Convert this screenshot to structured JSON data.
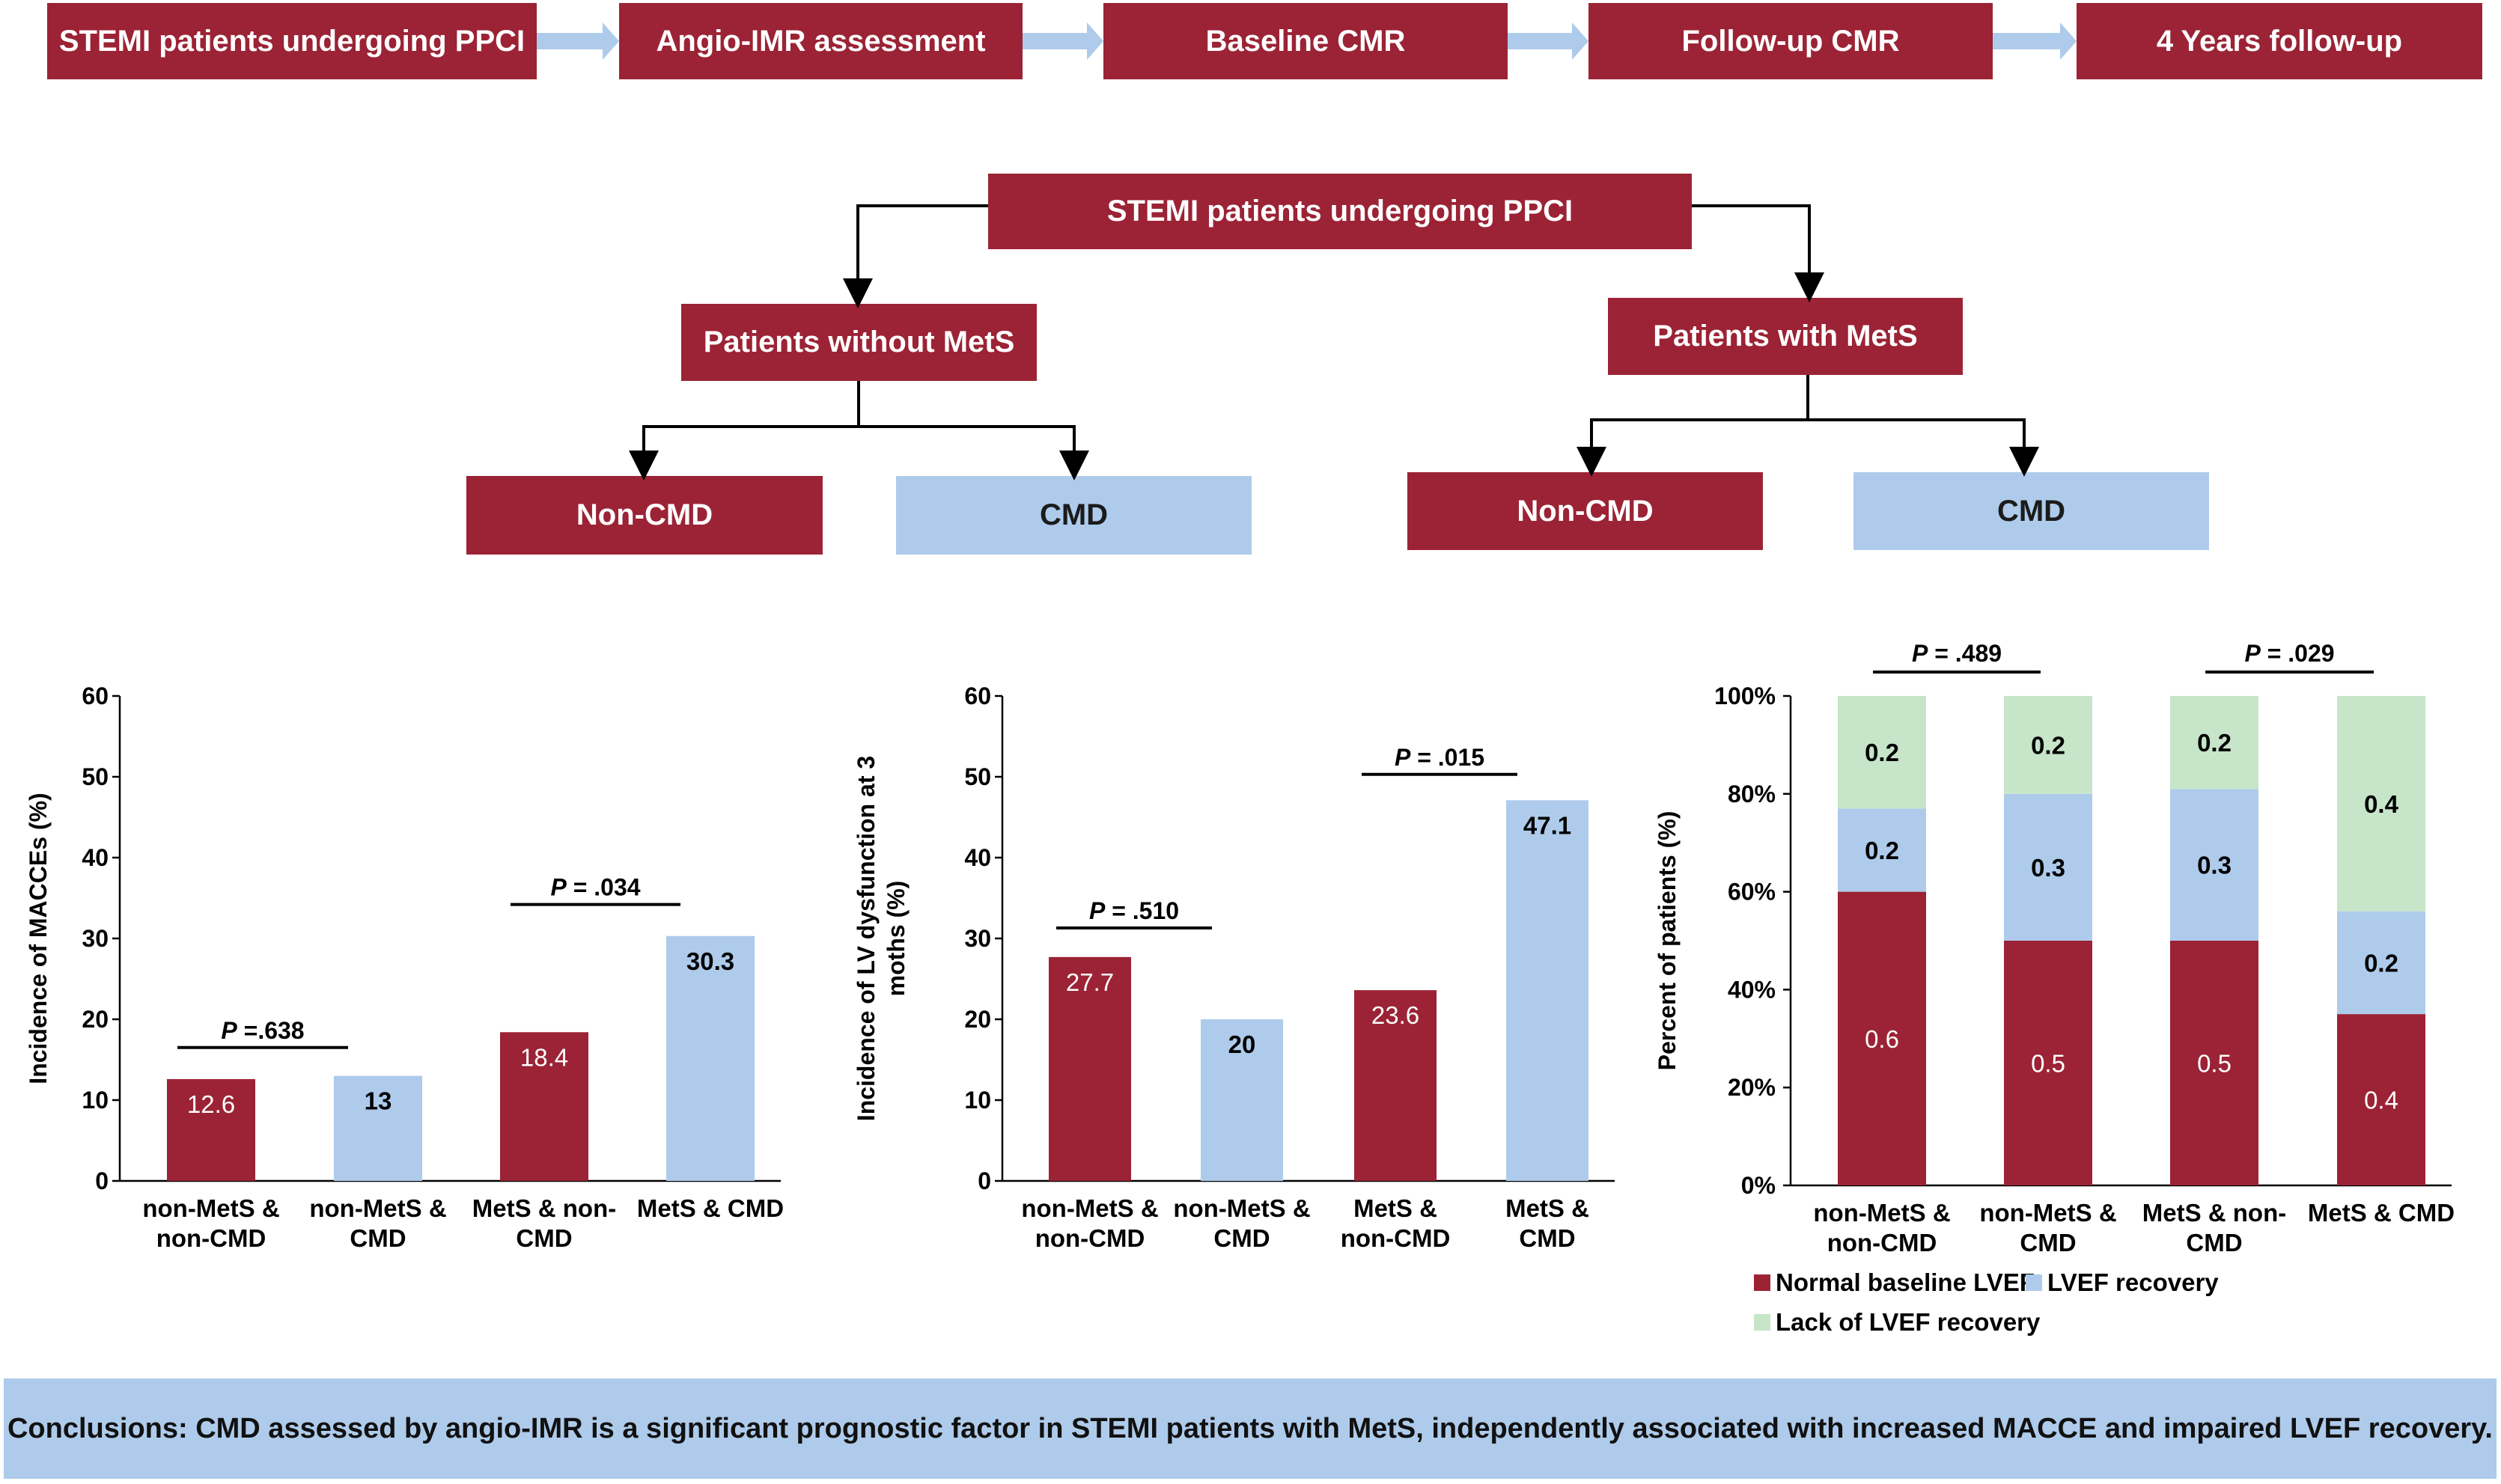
{
  "timeline": {
    "steps": [
      "STEMI patients undergoing PPCI",
      "Angio-IMR assessment",
      "Baseline CMR",
      "Follow-up CMR",
      "4 Years follow-up"
    ]
  },
  "tree": {
    "root": "STEMI patients undergoing PPCI",
    "left_group": "Patients without MetS",
    "right_group": "Patients with MetS",
    "left_noncmd": "Non-CMD",
    "left_cmd": "CMD",
    "right_noncmd": "Non-CMD",
    "right_cmd": "CMD"
  },
  "colors": {
    "red": "#9b2335",
    "blue": "#aecbeb",
    "green": "#c6e5c9"
  },
  "chart_data": [
    {
      "type": "bar",
      "ylabel": "Incidence of MACCEs (%)",
      "ylim": [
        0,
        60
      ],
      "yticks": [
        0,
        10,
        20,
        30,
        40,
        50,
        60
      ],
      "categories": [
        [
          "non-MetS &",
          "non-CMD"
        ],
        [
          "non-MetS &",
          "CMD"
        ],
        [
          "MetS & non-",
          "CMD"
        ],
        [
          "MetS & CMD"
        ]
      ],
      "values": [
        12.6,
        13,
        18.4,
        30.3
      ],
      "labels": [
        "12.6",
        "13",
        "18.4",
        "30.3"
      ],
      "bar_colors": [
        "red",
        "blue",
        "red",
        "blue"
      ],
      "pvalues": [
        {
          "text": "P =.638",
          "pair": [
            0,
            1
          ],
          "y": 16.5
        },
        {
          "text": "P = .034",
          "pair": [
            2,
            3
          ],
          "y": 34.2
        }
      ]
    },
    {
      "type": "bar",
      "ylabel": "Incidence of LV dysfunction at 3 moths (%)",
      "ylabel_lines": [
        "Incidence of LV dysfunction at 3",
        "moths (%)"
      ],
      "ylim": [
        0,
        60
      ],
      "yticks": [
        0,
        10,
        20,
        30,
        40,
        50,
        60
      ],
      "categories": [
        [
          "non-MetS &",
          "non-CMD"
        ],
        [
          "non-MetS &",
          "CMD"
        ],
        [
          "MetS &",
          "non-CMD"
        ],
        [
          "MetS &",
          "CMD"
        ]
      ],
      "values": [
        27.7,
        20,
        23.6,
        47.1
      ],
      "labels": [
        "27.7",
        "20",
        "23.6",
        "47.1"
      ],
      "bar_colors": [
        "red",
        "blue",
        "red",
        "blue"
      ],
      "pvalues": [
        {
          "text": "P = .510",
          "pair": [
            0,
            1
          ],
          "y": 31.3
        },
        {
          "text": "P = .015",
          "pair": [
            2,
            3
          ],
          "y": 50.3
        }
      ]
    },
    {
      "type": "stacked_bar",
      "ylabel": "Percent of patients (%)",
      "ylim": [
        0,
        100
      ],
      "yticks": [
        "0%",
        "20%",
        "40%",
        "60%",
        "80%",
        "100%"
      ],
      "categories": [
        [
          "non-MetS &",
          "non-CMD"
        ],
        [
          "non-MetS &",
          "CMD"
        ],
        [
          "MetS & non-",
          "CMD"
        ],
        [
          "MetS & CMD"
        ]
      ],
      "series": [
        {
          "name": "Normal baseline LVEF",
          "color": "red",
          "values": [
            0.6,
            0.5,
            0.5,
            0.35
          ],
          "labels": [
            "0.6",
            "0.5",
            "0.5",
            "0.4"
          ]
        },
        {
          "name": "LVEF recovery",
          "color": "blue",
          "values": [
            0.17,
            0.3,
            0.31,
            0.21
          ],
          "labels": [
            "0.2",
            "0.3",
            "0.3",
            "0.2"
          ]
        },
        {
          "name": "Lack of LVEF recovery",
          "color": "green",
          "values": [
            0.23,
            0.2,
            0.19,
            0.44
          ],
          "labels": [
            "0.2",
            "0.2",
            "0.2",
            "0.4"
          ]
        }
      ],
      "pvalues": [
        {
          "text": "P = .489",
          "pair": [
            0,
            1
          ]
        },
        {
          "text": "P = .029",
          "pair": [
            2,
            3
          ]
        }
      ]
    }
  ],
  "conclusion": "Conclusions: CMD assessed by angio-IMR is a significant prognostic factor in STEMI patients with MetS, independently associated with increased MACCE and impaired LVEF recovery."
}
